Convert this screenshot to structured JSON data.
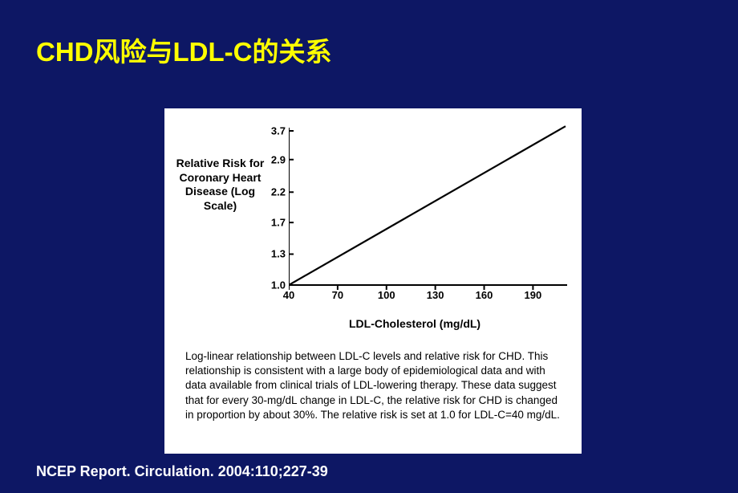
{
  "slide": {
    "title": "CHD风险与LDL-C的关系",
    "title_color": "#ffff00",
    "background_color": "#0d1764",
    "citation": "NCEP Report. Circulation. 2004:110;227-39",
    "citation_color": "#ffffff"
  },
  "figure": {
    "panel_background": "#ffffff",
    "y_axis_label": "Relative Risk for Coronary Heart Disease (Log Scale)",
    "x_axis_label": "LDL-Cholesterol (mg/dL)",
    "label_fontsize": 14,
    "label_fontweight": "bold",
    "tick_fontsize": 13,
    "tick_fontweight": "bold",
    "axis_color": "#000000",
    "line_color": "#000000",
    "line_width": 2.2,
    "type": "line",
    "x_scale": "linear",
    "y_scale": "log",
    "xlim": [
      40,
      210
    ],
    "x_ticks": [
      40,
      70,
      100,
      130,
      160,
      190
    ],
    "y_ticks": [
      1.0,
      1.3,
      1.7,
      2.2,
      2.9,
      3.7
    ],
    "y_tick_labels": [
      "1.0",
      "1.3",
      "1.7",
      "2.2",
      "2.9",
      "3.7"
    ],
    "data": {
      "x": [
        40,
        210
      ],
      "y": [
        1.0,
        3.85
      ]
    },
    "caption": "Log-linear relationship between LDL-C levels and relative risk for CHD. This relationship is consistent with a large body of epidemiological data and with data available from clinical trials of LDL-lowering therapy. These data suggest that for every 30-mg/dL change in LDL-C, the relative risk for CHD is changed in proportion by about 30%. The relative risk is set at 1.0 for LDL-C=40 mg/dL.",
    "caption_fontsize": 13.5
  }
}
